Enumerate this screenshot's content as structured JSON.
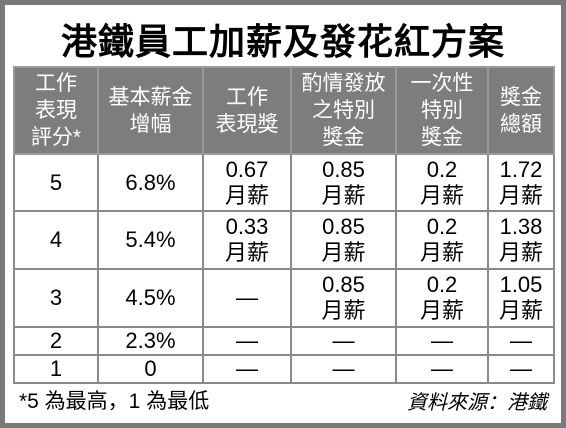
{
  "title": "港鐵員工加薪及發花紅方案",
  "table": {
    "header": [
      "工作\n表現\n評分*",
      "基本薪金\n增幅",
      "工作\n表現獎",
      "酌情發放\n之特別\n獎金",
      "一次性\n特別\n獎金",
      "獎金\n總額"
    ],
    "rows": [
      [
        "5",
        "6.8%",
        "0.67\n月薪",
        "0.85\n月薪",
        "0.2\n月薪",
        "1.72\n月薪"
      ],
      [
        "4",
        "5.4%",
        "0.33\n月薪",
        "0.85\n月薪",
        "0.2\n月薪",
        "1.38\n月薪"
      ],
      [
        "3",
        "4.5%",
        "—",
        "0.85\n月薪",
        "0.2\n月薪",
        "1.05\n月薪"
      ],
      [
        "2",
        "2.3%",
        "—",
        "—",
        "—",
        "—"
      ],
      [
        "1",
        "0",
        "—",
        "—",
        "—",
        "—"
      ]
    ]
  },
  "footnote": "*5 為最高，1 為最低",
  "source": "資料來源：港鐵"
}
